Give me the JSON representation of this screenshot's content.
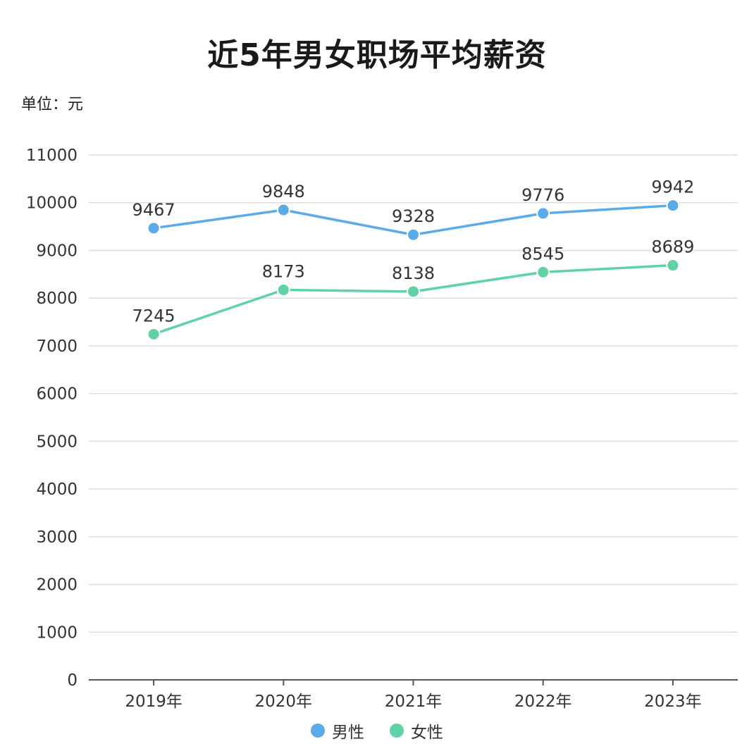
{
  "chart_data": {
    "type": "line",
    "title": "近5年男女职场平均薪资",
    "unit_label": "单位：元",
    "xlabel": "",
    "ylabel": "",
    "categories": [
      "2019年",
      "2020年",
      "2021年",
      "2022年",
      "2023年"
    ],
    "ylim": [
      0,
      11000
    ],
    "yticks": [
      0,
      1000,
      2000,
      3000,
      4000,
      5000,
      6000,
      7000,
      8000,
      9000,
      10000,
      11000
    ],
    "grid": true,
    "legend_position": "bottom-center",
    "series": [
      {
        "name": "男性",
        "color": "#5aabe8",
        "values": [
          9467,
          9848,
          9328,
          9776,
          9942
        ]
      },
      {
        "name": "女性",
        "color": "#5fd3a3",
        "values": [
          7245,
          8173,
          8138,
          8545,
          8689
        ]
      }
    ]
  }
}
